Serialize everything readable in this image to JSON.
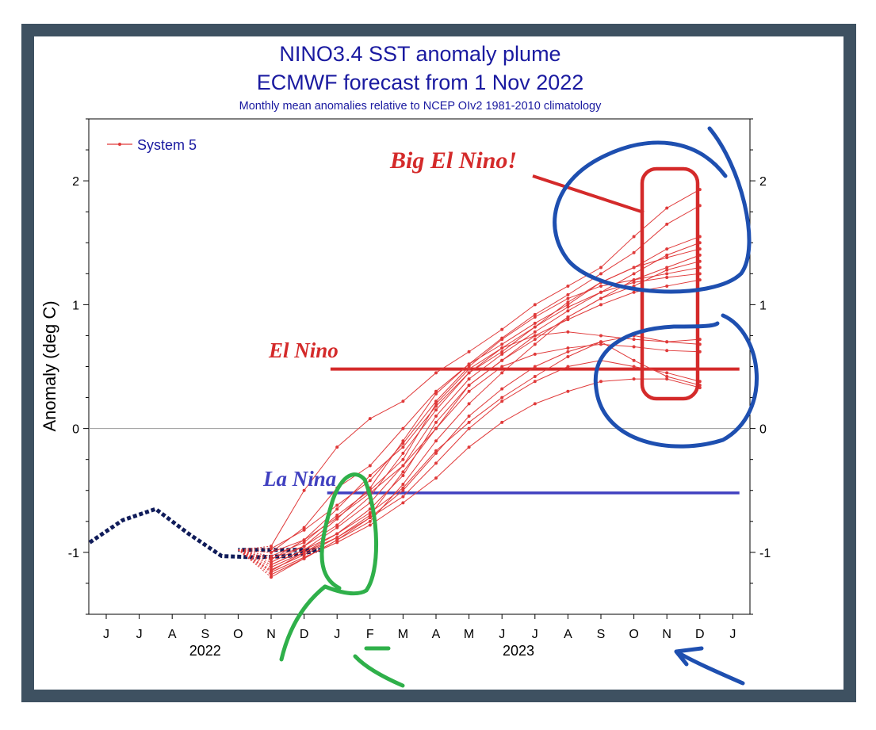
{
  "colors": {
    "frame": "#3e5161",
    "title": "#1a1aa0",
    "forecast": "#e03a3a",
    "observed": "#101c5a",
    "annotation_red": "#d42a2a",
    "annotation_blue": "#4040c0",
    "pen_blue": "#1e4fb0",
    "pen_green": "#2fb04a"
  },
  "chart_data": {
    "type": "line",
    "title": "NINO3.4 SST anomaly plume",
    "subtitle": "ECMWF forecast from 1 Nov 2022",
    "caption": "Monthly mean anomalies relative to NCEP OIv2 1981-2010 climatology",
    "ylabel": "Anomaly (deg C)",
    "xlabel": "",
    "ylim": [
      -1.5,
      2.5
    ],
    "yticks": [
      -1,
      0,
      1,
      2
    ],
    "ytick_labels": [
      "-1",
      "0",
      "1",
      "2"
    ],
    "months": [
      "J",
      "J",
      "A",
      "S",
      "O",
      "N",
      "D",
      "J",
      "F",
      "M",
      "A",
      "M",
      "J",
      "J",
      "A",
      "S",
      "O",
      "N",
      "D",
      "J"
    ],
    "year_labels": [
      {
        "label": "2022",
        "month_index": 3
      },
      {
        "label": "2023",
        "month_index": 12.5
      }
    ],
    "legend": {
      "label": "System 5",
      "placement": "top-left"
    },
    "grid": false,
    "observed": {
      "month_index_start": -0.5,
      "values": [
        -0.92,
        -0.74,
        -0.65,
        -0.85,
        -1.03,
        -1.04,
        -1.03,
        -0.98
      ]
    },
    "forecast_start": {
      "month_index": 4,
      "value": -0.98
    },
    "series": [
      {
        "values": [
          -0.95,
          -0.5,
          -0.15,
          0.08,
          0.22,
          0.45,
          0.62,
          0.8,
          1.0,
          1.15,
          1.3,
          1.55,
          1.78,
          1.93
        ]
      },
      {
        "values": [
          -1.0,
          -0.8,
          -0.48,
          -0.3,
          0.0,
          0.3,
          0.52,
          0.73,
          0.92,
          1.08,
          1.25,
          1.42,
          1.65,
          1.8
        ]
      },
      {
        "values": [
          -1.05,
          -0.95,
          -0.73,
          -0.48,
          -0.1,
          0.28,
          0.52,
          0.68,
          0.85,
          1.0,
          1.18,
          1.3,
          1.45,
          1.55
        ]
      },
      {
        "values": [
          -1.1,
          -0.98,
          -0.8,
          -0.6,
          -0.3,
          0.1,
          0.4,
          0.6,
          0.78,
          0.95,
          1.1,
          1.25,
          1.4,
          1.5
        ]
      },
      {
        "values": [
          -1.0,
          -0.9,
          -0.65,
          -0.38,
          -0.15,
          0.18,
          0.45,
          0.62,
          0.82,
          1.02,
          1.18,
          1.3,
          1.38,
          1.45
        ]
      },
      {
        "values": [
          -1.15,
          -1.0,
          -0.88,
          -0.7,
          -0.35,
          0.0,
          0.35,
          0.55,
          0.72,
          0.9,
          1.05,
          1.2,
          1.3,
          1.4
        ]
      },
      {
        "values": [
          -1.2,
          -1.05,
          -0.9,
          -0.75,
          -0.45,
          -0.1,
          0.2,
          0.45,
          0.68,
          0.9,
          1.05,
          1.15,
          1.28,
          1.35
        ]
      },
      {
        "values": [
          -0.97,
          -0.82,
          -0.62,
          -0.42,
          -0.12,
          0.22,
          0.5,
          0.72,
          0.9,
          1.05,
          1.15,
          1.2,
          1.25,
          1.3
        ]
      },
      {
        "values": [
          -1.08,
          -0.95,
          -0.78,
          -0.55,
          -0.2,
          0.15,
          0.45,
          0.65,
          0.82,
          0.98,
          1.1,
          1.18,
          1.22,
          1.25
        ]
      },
      {
        "values": [
          -1.12,
          -1.0,
          -0.85,
          -0.65,
          -0.38,
          0.05,
          0.35,
          0.55,
          0.75,
          0.88,
          1.0,
          1.1,
          1.15,
          1.2
        ]
      },
      {
        "values": [
          -1.03,
          -0.92,
          -0.7,
          -0.5,
          -0.25,
          0.2,
          0.48,
          0.65,
          0.75,
          0.78,
          0.75,
          0.72,
          0.7,
          0.72
        ]
      },
      {
        "values": [
          -1.18,
          -1.05,
          -0.9,
          -0.72,
          -0.5,
          -0.2,
          0.1,
          0.32,
          0.5,
          0.62,
          0.7,
          0.75,
          0.7,
          0.68
        ]
      },
      {
        "values": [
          -1.06,
          -0.9,
          -0.72,
          -0.52,
          -0.3,
          0.0,
          0.3,
          0.5,
          0.6,
          0.65,
          0.68,
          0.66,
          0.63,
          0.62
        ]
      },
      {
        "values": [
          -1.14,
          -1.02,
          -0.88,
          -0.72,
          -0.55,
          -0.28,
          0.0,
          0.22,
          0.38,
          0.5,
          0.55,
          0.5,
          0.45,
          0.38
        ]
      },
      {
        "values": [
          -1.1,
          -0.98,
          -0.85,
          -0.68,
          -0.48,
          -0.18,
          0.05,
          0.25,
          0.42,
          0.58,
          0.7,
          0.55,
          0.42,
          0.35
        ]
      },
      {
        "values": [
          -1.16,
          -1.04,
          -0.92,
          -0.78,
          -0.6,
          -0.4,
          -0.15,
          0.05,
          0.2,
          0.3,
          0.38,
          0.4,
          0.4,
          0.33
        ]
      }
    ],
    "forecast_month_start": 5,
    "thresholds": [
      {
        "label": "El Nino",
        "value": 0.48,
        "from_month": 6.8,
        "to_month": 19.2
      },
      {
        "label": "La Nina",
        "value": -0.52,
        "from_month": 6.7,
        "to_month": 19.2
      }
    ],
    "annotations": [
      {
        "label": "Big El Nino!"
      },
      {
        "label": "El Nino"
      },
      {
        "label": "La Nina"
      }
    ]
  }
}
